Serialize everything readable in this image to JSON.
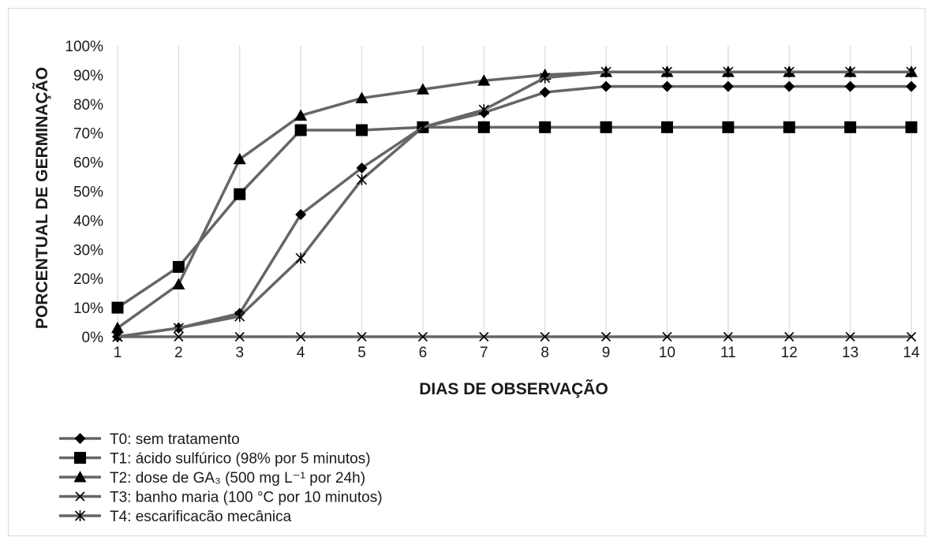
{
  "chart_data": {
    "type": "line",
    "title": "",
    "xlabel": "DIAS DE OBSERVAÇÃO",
    "ylabel": "PORCENTUAL DE GERMINAÇÃO",
    "x": [
      1,
      2,
      3,
      4,
      5,
      6,
      7,
      8,
      9,
      10,
      11,
      12,
      13,
      14
    ],
    "x_tick_labels": [
      "1",
      "2",
      "3",
      "4",
      "5",
      "6",
      "7",
      "8",
      "9",
      "10",
      "11",
      "12",
      "13",
      "14"
    ],
    "y_tick_labels": [
      "0%",
      "10%",
      "20%",
      "30%",
      "40%",
      "50%",
      "60%",
      "70%",
      "80%",
      "90%",
      "100%"
    ],
    "ylim": [
      0,
      100
    ],
    "grid": "vertical",
    "legend_position": "bottom-left",
    "line_color": "#666666",
    "marker_color": "#000000",
    "series": [
      {
        "name": "T0: sem tratamento",
        "marker": "diamond",
        "values": [
          0,
          3,
          8,
          42,
          58,
          72,
          77,
          84,
          86,
          86,
          86,
          86,
          86,
          86
        ]
      },
      {
        "name": "T1: ácido sulfúrico (98% por 5 minutos)",
        "marker": "square",
        "values": [
          10,
          24,
          49,
          71,
          71,
          72,
          72,
          72,
          72,
          72,
          72,
          72,
          72,
          72
        ]
      },
      {
        "name": "T2: dose de GA₃ (500 mg L⁻¹ por 24h)",
        "marker": "triangle",
        "values": [
          3,
          18,
          61,
          76,
          82,
          85,
          88,
          90,
          91,
          91,
          91,
          91,
          91,
          91
        ]
      },
      {
        "name": "T3: banho maria (100 °C por 10 minutos)",
        "marker": "x",
        "values": [
          0,
          0,
          0,
          0,
          0,
          0,
          0,
          0,
          0,
          0,
          0,
          0,
          0,
          0
        ]
      },
      {
        "name": "T4: escarificacão mecânica",
        "marker": "star",
        "values": [
          0,
          3,
          7,
          27,
          54,
          72,
          78,
          89,
          91,
          91,
          91,
          91,
          91,
          91
        ]
      }
    ]
  }
}
